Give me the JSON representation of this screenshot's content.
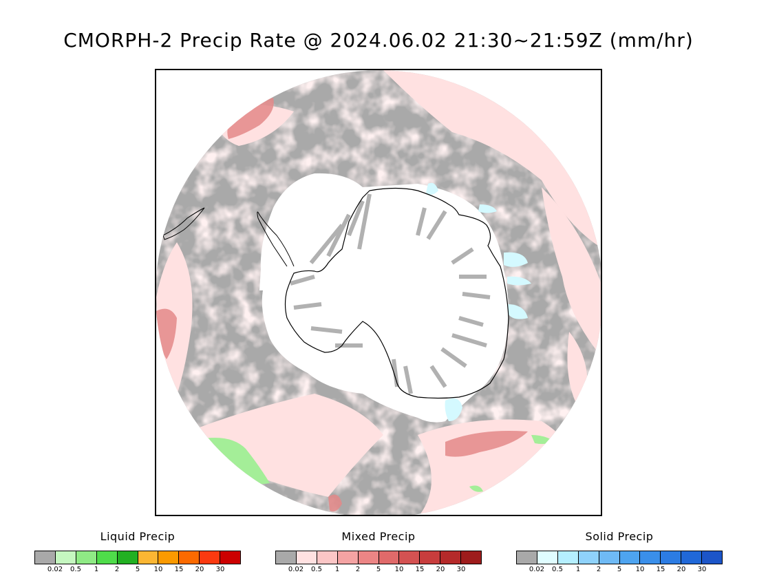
{
  "title": "CMORPH-2 Precip Rate @ 2024.06.02 21:30~21:59Z (mm/hr)",
  "map": {
    "projection": "south-polar-stereographic",
    "region": "Southern Hemisphere / Antarctica",
    "colors": {
      "no_precip": "#ffffff",
      "below_threshold": "#a9a9a9",
      "mixed_light": "#ffe1e1",
      "mixed_med": "#f2a3a3",
      "mixed_heavy": "#d96a6a",
      "liquid_light": "#b9f5b0",
      "liquid_med": "#88e680",
      "solid_light": "#d8fbff",
      "coastline": "#000000"
    }
  },
  "legends": [
    {
      "title": "Liquid Precip",
      "colors": [
        "#a9a9a9",
        "#c5f7c0",
        "#8fea85",
        "#4fdc4a",
        "#22b022",
        "#fbb633",
        "#fb9a00",
        "#fb6a00",
        "#fb3a10",
        "#cc0000"
      ],
      "ticks": [
        "0.02",
        "0.5",
        "1",
        "2",
        "5",
        "10",
        "15",
        "20",
        "30"
      ]
    },
    {
      "title": "Mixed Precip",
      "colors": [
        "#a9a9a9",
        "#ffe1e1",
        "#fbc6c6",
        "#f4a3a3",
        "#ec8585",
        "#e06a6a",
        "#d45252",
        "#c83d3d",
        "#b52a2a",
        "#9e1c1c"
      ],
      "ticks": [
        "0.02",
        "0.5",
        "1",
        "2",
        "5",
        "10",
        "15",
        "20",
        "30"
      ]
    },
    {
      "title": "Solid Precip",
      "colors": [
        "#a9a9a9",
        "#e0fdff",
        "#b5efff",
        "#8fd2fb",
        "#6fbaf5",
        "#4ea4f0",
        "#3a8fea",
        "#2c7ce3",
        "#2068d8",
        "#1c55c8"
      ],
      "ticks": [
        "0.02",
        "0.5",
        "1",
        "2",
        "5",
        "10",
        "15",
        "20",
        "30"
      ]
    }
  ]
}
